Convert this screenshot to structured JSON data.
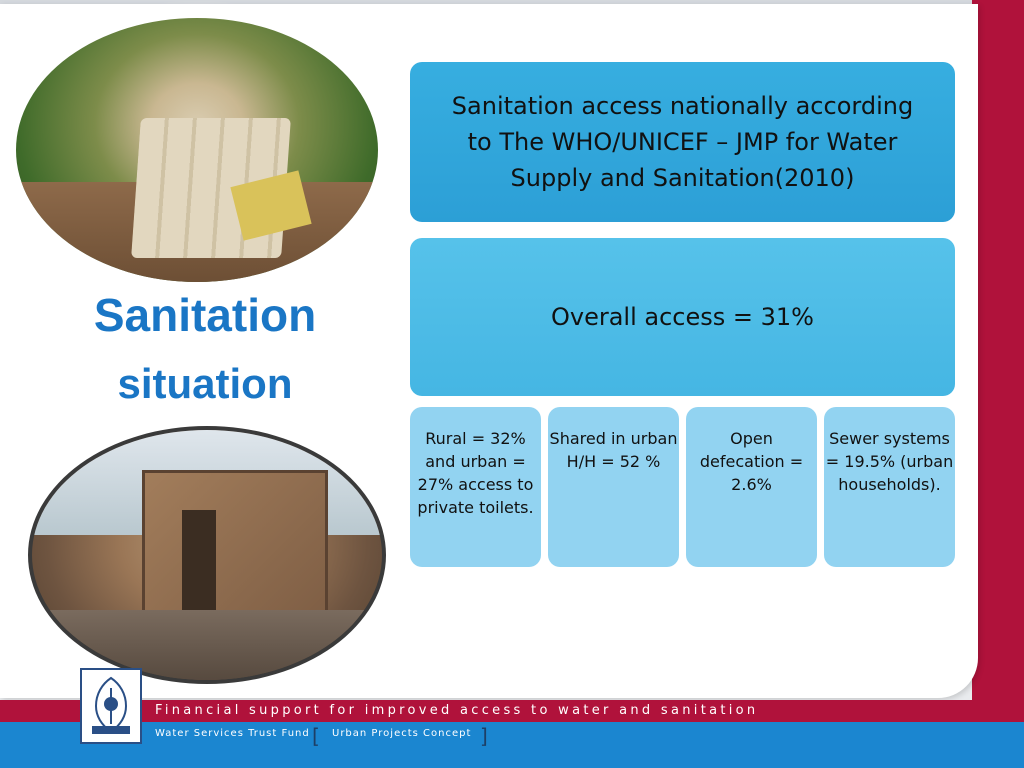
{
  "heading": {
    "line1": "Sanitation",
    "line2": "situation"
  },
  "boxes": {
    "title": "Sanitation access nationally according to The WHO/UNICEF – JMP for Water Supply and Sanitation(2010)",
    "overall": "Overall access = 31%",
    "details": [
      "Rural = 32% and urban = 27% access to private toilets.",
      "Shared in urban H/H = 52 %",
      "Open defecation = 2.6%",
      "Sewer systems = 19.5% (urban households)."
    ]
  },
  "footer": {
    "tagline": "Financial support for improved access to water and sanitation",
    "organization": "Water Services Trust Fund",
    "concept": "Urban Projects Concept"
  },
  "colors": {
    "heading": "#1a76c5",
    "title_box": "#2c9fd6",
    "overall_box": "#45b6e3",
    "detail_box": "#92d3f1",
    "accent_red": "#b0123b",
    "footer_blue": "#1b86d0"
  },
  "images": {
    "top_photo": "photo-of-makeshift-latrine",
    "bottom_photo": "photo-of-wooden-shack-toilet",
    "logo": "kenya-coat-of-arms-logo"
  }
}
